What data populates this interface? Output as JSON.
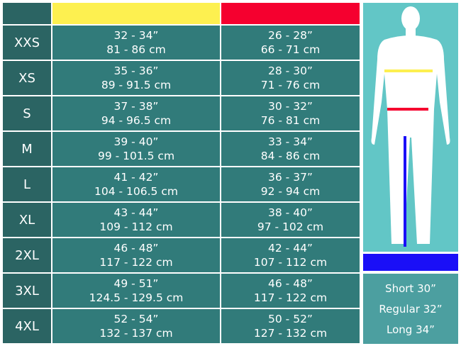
{
  "colors": {
    "chest": "#fdf050",
    "waist": "#f5002f",
    "inseam": "#1a0ff7",
    "size_col": "#2b6463",
    "cell": "#317b7a"
  },
  "rows": [
    {
      "size": "XXS",
      "chest_in": "32 - 34”",
      "chest_cm": "81 - 86 cm",
      "waist_in": "26 - 28”",
      "waist_cm": "66 - 71 cm"
    },
    {
      "size": "XS",
      "chest_in": "35 - 36”",
      "chest_cm": "89 - 91.5 cm",
      "waist_in": "28 - 30”",
      "waist_cm": "71 - 76 cm"
    },
    {
      "size": "S",
      "chest_in": "37 - 38”",
      "chest_cm": "94 - 96.5 cm",
      "waist_in": "30 - 32”",
      "waist_cm": "76 - 81 cm"
    },
    {
      "size": "M",
      "chest_in": "39 - 40”",
      "chest_cm": "99 - 101.5 cm",
      "waist_in": "33 - 34”",
      "waist_cm": "84 - 86 cm"
    },
    {
      "size": "L",
      "chest_in": "41 - 42”",
      "chest_cm": "104 - 106.5 cm",
      "waist_in": "36 - 37”",
      "waist_cm": "92 - 94 cm"
    },
    {
      "size": "XL",
      "chest_in": "43 - 44”",
      "chest_cm": "109 - 112 cm",
      "waist_in": "38 - 40”",
      "waist_cm": "97 - 102 cm"
    },
    {
      "size": "2XL",
      "chest_in": "46 - 48”",
      "chest_cm": "117 - 122 cm",
      "waist_in": "42 - 44”",
      "waist_cm": "107 - 112 cm"
    },
    {
      "size": "3XL",
      "chest_in": "49 - 51”",
      "chest_cm": "124.5 - 129.5 cm",
      "waist_in": "46 - 48”",
      "waist_cm": "117 - 122 cm"
    },
    {
      "size": "4XL",
      "chest_in": "52 - 54”",
      "chest_cm": "132 - 137 cm",
      "waist_in": "50 - 52”",
      "waist_cm": "127 - 132 cm"
    }
  ],
  "leg_lengths": [
    "Short 30”",
    "Regular 32”",
    "Long 34”"
  ]
}
